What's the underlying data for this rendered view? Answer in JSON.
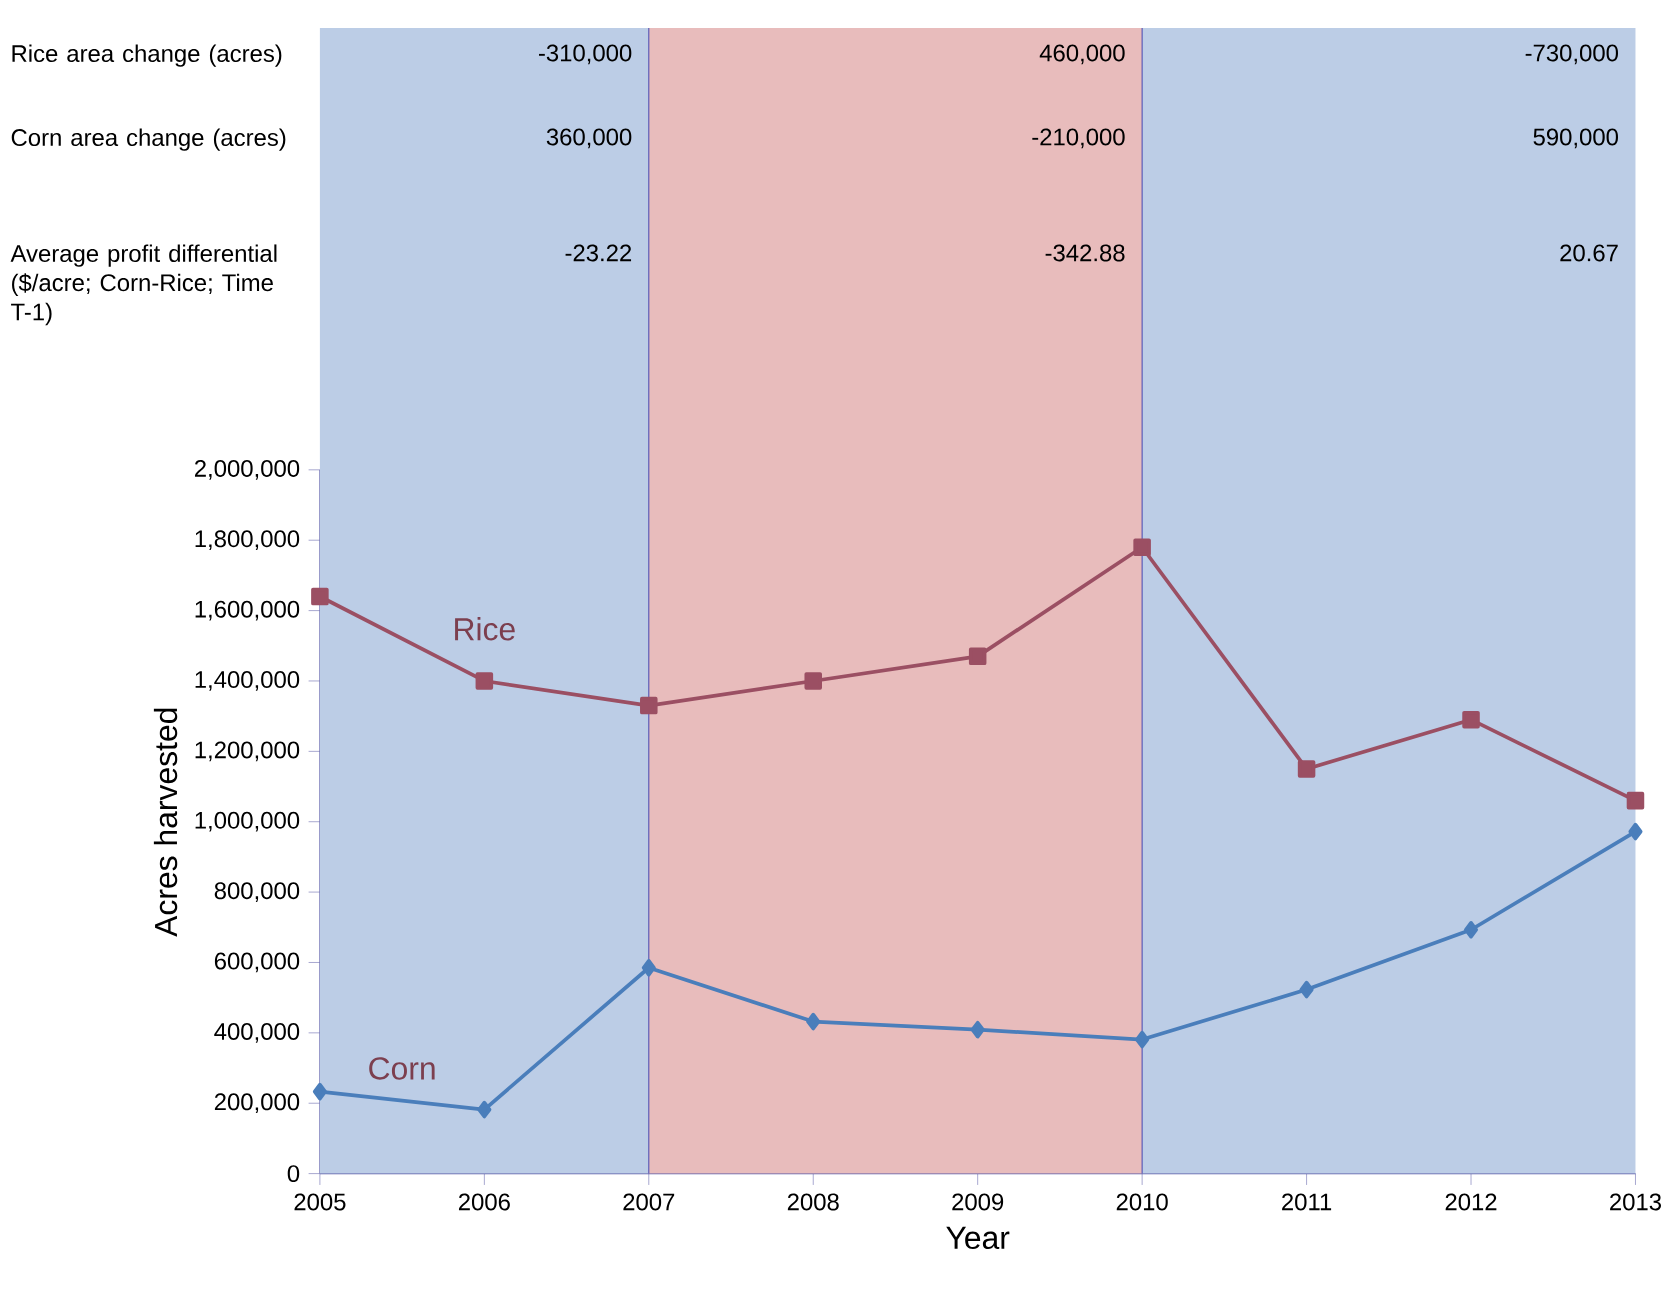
{
  "chart_data": {
    "type": "line",
    "xlabel": "Year",
    "ylabel": "Acres harvested",
    "x": [
      2005,
      2006,
      2007,
      2008,
      2009,
      2010,
      2011,
      2012,
      2013
    ],
    "series": [
      {
        "name": "Rice",
        "color": "#9b4f63",
        "marker": "square",
        "values": [
          1640000,
          1400000,
          1330000,
          1400000,
          1470000,
          1780000,
          1150000,
          1290000,
          1060000
        ]
      },
      {
        "name": "Corn",
        "color": "#4a7ebb",
        "marker": "diamond",
        "values": [
          233000,
          182000,
          585000,
          432000,
          409000,
          381000,
          523000,
          693000,
          972000
        ]
      }
    ],
    "xlim": [
      2005,
      2013
    ],
    "ylim": [
      0,
      2000000
    ],
    "xticks": [
      2005,
      2006,
      2007,
      2008,
      2009,
      2010,
      2011,
      2012,
      2013
    ],
    "yticks": [
      0,
      {
        "value": 200000,
        "label": "200,000"
      },
      {
        "value": 400000,
        "label": "400,000"
      },
      {
        "value": 600000,
        "label": "600,000"
      },
      {
        "value": 800000,
        "label": "800,000"
      },
      {
        "value": 1000000,
        "label": "1,000,000"
      },
      {
        "value": 1200000,
        "label": "1,200,000"
      },
      {
        "value": 1400000,
        "label": "1,400,000"
      },
      {
        "value": 1600000,
        "label": "1,600,000"
      },
      {
        "value": 1800000,
        "label": "1,800,000"
      },
      {
        "value": 2000000,
        "label": "2,000,000"
      }
    ],
    "bands": [
      {
        "axis": "x",
        "from": 2005,
        "to": 2007,
        "color": "#bccde6"
      },
      {
        "axis": "x",
        "from": 2007,
        "to": 2010,
        "color": "#e8bcbc"
      },
      {
        "axis": "x",
        "from": 2010,
        "to": 2013,
        "color": "#bccde6"
      }
    ],
    "annotations": [
      "Rice area change (acres)",
      "-310,000",
      "460,000",
      "-730,000",
      "Corn area change (acres)",
      "360,000",
      "-210,000",
      "590,000",
      "Average profit differential ($/acre; Corn-Rice; Time T-1)",
      "-23.22",
      "-342.88",
      "20.67"
    ]
  }
}
